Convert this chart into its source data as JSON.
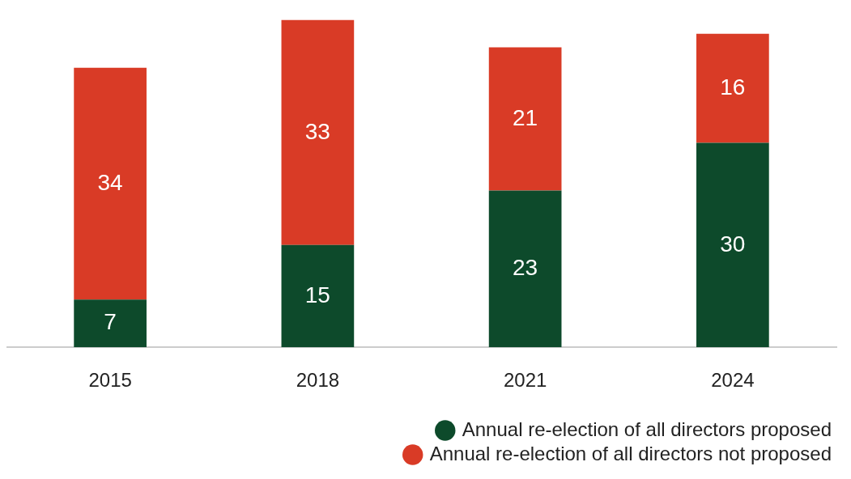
{
  "chart_data": {
    "type": "bar",
    "stacked": true,
    "categories": [
      "2015",
      "2018",
      "2021",
      "2024"
    ],
    "series": [
      {
        "name": "Annual re-election of all directors proposed",
        "color": "#0d4a2b",
        "values": [
          7,
          15,
          23,
          30
        ]
      },
      {
        "name": "Annual re-election of all directors not proposed",
        "color": "#d93b26",
        "values": [
          34,
          33,
          21,
          16
        ]
      }
    ],
    "data_labels": true,
    "legend": "bottom right",
    "grid": false
  }
}
